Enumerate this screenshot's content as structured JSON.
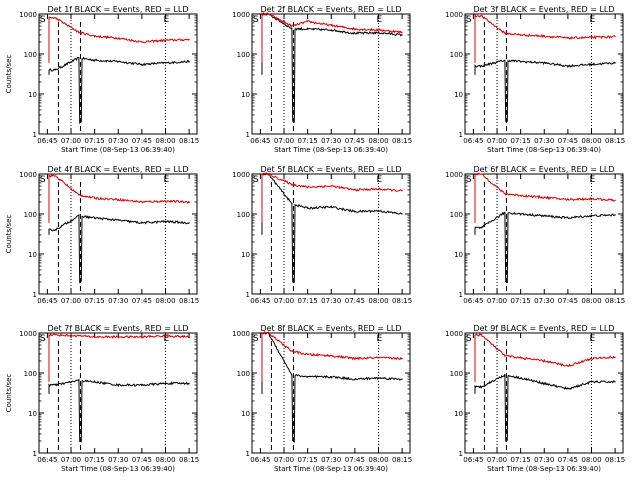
{
  "colors": {
    "events": "#000000",
    "lld": "#dd0000",
    "axis": "#000000"
  },
  "chart_data": [
    {
      "type": "line",
      "title": "Det 1f BLACK = Events, RED = LLD",
      "ylabel": "Counts/sec",
      "xlabel": "Start Time (08-Sep-13 06:39:40)",
      "y_scale": "log",
      "ylim": [
        1,
        1000
      ],
      "yticks": [
        "1",
        "10",
        "100",
        "1000"
      ],
      "xticks": [
        "06:45",
        "07:00",
        "07:15",
        "07:30",
        "07:45",
        "08:00",
        "08:15"
      ],
      "markers": [
        {
          "label": "S",
          "x": "06:40"
        },
        {
          "label": "E",
          "x": "08:00"
        }
      ],
      "series": [
        {
          "name": "BLACK = Events",
          "x": [
            "06:50",
            "07:05",
            "07:15",
            "07:30",
            "07:45",
            "08:00",
            "08:15"
          ],
          "values": [
            40,
            80,
            70,
            65,
            55,
            60,
            65
          ]
        },
        {
          "name": "RED = LLD",
          "x": [
            "06:50",
            "07:05",
            "07:15",
            "07:30",
            "07:45",
            "08:00",
            "08:15"
          ],
          "values": [
            800,
            350,
            280,
            250,
            200,
            220,
            230
          ]
        }
      ]
    },
    {
      "type": "line",
      "title": "Det 2f BLACK = Events, RED = LLD",
      "ylabel": "",
      "xlabel": "Start Time (08-Sep-13 06:39:40)",
      "y_scale": "log",
      "ylim": [
        1,
        1000
      ],
      "yticks": [
        "1",
        "10",
        "100",
        "1000"
      ],
      "xticks": [
        "06:45",
        "07:00",
        "07:15",
        "07:30",
        "07:45",
        "08:00",
        "08:15"
      ],
      "markers": [
        {
          "label": "S",
          "x": "06:40"
        },
        {
          "label": "E",
          "x": "08:00"
        }
      ],
      "series": [
        {
          "name": "BLACK = Events",
          "x": [
            "06:50",
            "07:05",
            "07:15",
            "07:30",
            "07:45",
            "08:00",
            "08:15"
          ],
          "values": [
            1000,
            430,
            420,
            400,
            330,
            340,
            300
          ]
        },
        {
          "name": "RED = LLD",
          "x": [
            "06:50",
            "07:05",
            "07:15",
            "07:30",
            "07:45",
            "08:00",
            "08:15"
          ],
          "values": [
            1000,
            500,
            650,
            520,
            420,
            400,
            350
          ]
        }
      ]
    },
    {
      "type": "line",
      "title": "Det 3f BLACK = Events, RED = LLD",
      "ylabel": "",
      "xlabel": "Start Time (08-Sep-13 06:39:40)",
      "y_scale": "log",
      "ylim": [
        1,
        1000
      ],
      "yticks": [
        "1",
        "10",
        "100",
        "1000"
      ],
      "xticks": [
        "06:45",
        "07:00",
        "07:15",
        "07:30",
        "07:45",
        "08:00",
        "08:15"
      ],
      "markers": [
        {
          "label": "S",
          "x": "06:40"
        },
        {
          "label": "E",
          "x": "08:00"
        }
      ],
      "series": [
        {
          "name": "BLACK = Events",
          "x": [
            "06:50",
            "07:05",
            "07:15",
            "07:30",
            "07:45",
            "08:00",
            "08:15"
          ],
          "values": [
            50,
            70,
            65,
            60,
            50,
            55,
            60
          ]
        },
        {
          "name": "RED = LLD",
          "x": [
            "06:50",
            "07:05",
            "07:15",
            "07:30",
            "07:45",
            "08:00",
            "08:15"
          ],
          "values": [
            900,
            330,
            300,
            280,
            250,
            260,
            270
          ]
        }
      ]
    },
    {
      "type": "line",
      "title": "Det 4f BLACK = Events, RED = LLD",
      "ylabel": "Counts/sec",
      "xlabel": "",
      "y_scale": "log",
      "ylim": [
        1,
        1000
      ],
      "yticks": [
        "1",
        "10",
        "100",
        "1000"
      ],
      "xticks": [
        "06:45",
        "07:00",
        "07:15",
        "07:30",
        "07:45",
        "08:00",
        "08:15"
      ],
      "markers": [
        {
          "label": "S",
          "x": "06:40"
        },
        {
          "label": "E",
          "x": "08:00"
        }
      ],
      "series": [
        {
          "name": "BLACK = Events",
          "x": [
            "06:50",
            "07:05",
            "07:15",
            "07:30",
            "07:45",
            "08:00",
            "08:15"
          ],
          "values": [
            40,
            90,
            80,
            70,
            60,
            65,
            60
          ]
        },
        {
          "name": "RED = LLD",
          "x": [
            "06:50",
            "07:05",
            "07:15",
            "07:30",
            "07:45",
            "08:00",
            "08:15"
          ],
          "values": [
            900,
            300,
            250,
            230,
            200,
            210,
            200
          ]
        }
      ]
    },
    {
      "type": "line",
      "title": "Det 5f BLACK = Events, RED = LLD",
      "ylabel": "",
      "xlabel": "",
      "y_scale": "log",
      "ylim": [
        1,
        1000
      ],
      "yticks": [
        "1",
        "10",
        "100",
        "1000"
      ],
      "xticks": [
        "06:45",
        "07:00",
        "07:15",
        "07:30",
        "07:45",
        "08:00",
        "08:15"
      ],
      "markers": [
        {
          "label": "S",
          "x": "06:40"
        },
        {
          "label": "E",
          "x": "08:00"
        }
      ],
      "series": [
        {
          "name": "BLACK = Events",
          "x": [
            "06:50",
            "07:05",
            "07:15",
            "07:30",
            "07:45",
            "08:00",
            "08:15"
          ],
          "values": [
            1000,
            180,
            140,
            150,
            115,
            120,
            100
          ]
        },
        {
          "name": "RED = LLD",
          "x": [
            "06:50",
            "07:05",
            "07:15",
            "07:30",
            "07:45",
            "08:00",
            "08:15"
          ],
          "values": [
            1000,
            550,
            470,
            500,
            400,
            420,
            380
          ]
        }
      ]
    },
    {
      "type": "line",
      "title": "Det 6f BLACK = Events, RED = LLD",
      "ylabel": "",
      "xlabel": "",
      "y_scale": "log",
      "ylim": [
        1,
        1000
      ],
      "yticks": [
        "1",
        "10",
        "100",
        "1000"
      ],
      "xticks": [
        "06:45",
        "07:00",
        "07:15",
        "07:30",
        "07:45",
        "08:00",
        "08:15"
      ],
      "markers": [
        {
          "label": "S",
          "x": "06:40"
        },
        {
          "label": "E",
          "x": "08:00"
        }
      ],
      "series": [
        {
          "name": "BLACK = Events",
          "x": [
            "06:50",
            "07:05",
            "07:15",
            "07:30",
            "07:45",
            "08:00",
            "08:15"
          ],
          "values": [
            45,
            110,
            100,
            90,
            80,
            90,
            95
          ]
        },
        {
          "name": "RED = LLD",
          "x": [
            "06:50",
            "07:05",
            "07:15",
            "07:30",
            "07:45",
            "08:00",
            "08:15"
          ],
          "values": [
            1000,
            320,
            290,
            260,
            230,
            240,
            220
          ]
        }
      ]
    },
    {
      "type": "line",
      "title": "Det 7f BLACK = Events, RED = LLD",
      "ylabel": "Counts/sec",
      "xlabel": "Start Time (08-Sep-13 06:39:40)",
      "y_scale": "log",
      "ylim": [
        1,
        1000
      ],
      "yticks": [
        "1",
        "10",
        "100",
        "1000"
      ],
      "xticks": [
        "06:45",
        "07:00",
        "07:15",
        "07:30",
        "07:45",
        "08:00",
        "08:15"
      ],
      "markers": [
        {
          "label": "S",
          "x": "06:40"
        },
        {
          "label": "E",
          "x": "08:00"
        }
      ],
      "series": [
        {
          "name": "BLACK = Events",
          "x": [
            "06:50",
            "07:05",
            "07:15",
            "07:30",
            "07:45",
            "08:00",
            "08:15"
          ],
          "values": [
            50,
            65,
            60,
            50,
            50,
            55,
            55
          ]
        },
        {
          "name": "RED = LLD",
          "x": [
            "06:50",
            "07:05",
            "07:15",
            "07:30",
            "07:45",
            "08:00",
            "08:15"
          ],
          "values": [
            900,
            850,
            800,
            800,
            800,
            850,
            800
          ]
        }
      ]
    },
    {
      "type": "line",
      "title": "Det 8f BLACK = Events, RED = LLD",
      "ylabel": "",
      "xlabel": "Start Time (08-Sep-13 06:39:40)",
      "y_scale": "log",
      "ylim": [
        1,
        1000
      ],
      "yticks": [
        "1",
        "10",
        "100",
        "1000"
      ],
      "xticks": [
        "06:45",
        "07:00",
        "07:15",
        "07:30",
        "07:45",
        "08:00",
        "08:15"
      ],
      "markers": [
        {
          "label": "S",
          "x": "06:40"
        },
        {
          "label": "E",
          "x": "08:00"
        }
      ],
      "series": [
        {
          "name": "BLACK = Events",
          "x": [
            "06:50",
            "07:05",
            "07:15",
            "07:30",
            "07:45",
            "08:00",
            "08:15"
          ],
          "values": [
            1000,
            90,
            80,
            80,
            70,
            75,
            70
          ]
        },
        {
          "name": "RED = LLD",
          "x": [
            "06:50",
            "07:05",
            "07:15",
            "07:30",
            "07:45",
            "08:00",
            "08:15"
          ],
          "values": [
            1000,
            350,
            290,
            270,
            230,
            240,
            230
          ]
        }
      ]
    },
    {
      "type": "line",
      "title": "Det 9f BLACK = Events, RED = LLD",
      "ylabel": "",
      "xlabel": "Start Time (08-Sep-13 06:39:40)",
      "y_scale": "log",
      "ylim": [
        1,
        1000
      ],
      "yticks": [
        "1",
        "10",
        "100",
        "1000"
      ],
      "xticks": [
        "06:45",
        "07:00",
        "07:15",
        "07:30",
        "07:45",
        "08:00",
        "08:15"
      ],
      "markers": [
        {
          "label": "S",
          "x": "06:40"
        },
        {
          "label": "E",
          "x": "08:00"
        }
      ],
      "series": [
        {
          "name": "BLACK = Events",
          "x": [
            "06:50",
            "07:05",
            "07:15",
            "07:30",
            "07:45",
            "08:00",
            "08:15"
          ],
          "values": [
            45,
            90,
            75,
            55,
            40,
            60,
            60
          ]
        },
        {
          "name": "RED = LLD",
          "x": [
            "06:50",
            "07:05",
            "07:15",
            "07:30",
            "07:45",
            "08:00",
            "08:15"
          ],
          "values": [
            900,
            270,
            240,
            200,
            150,
            230,
            250
          ]
        }
      ]
    }
  ]
}
